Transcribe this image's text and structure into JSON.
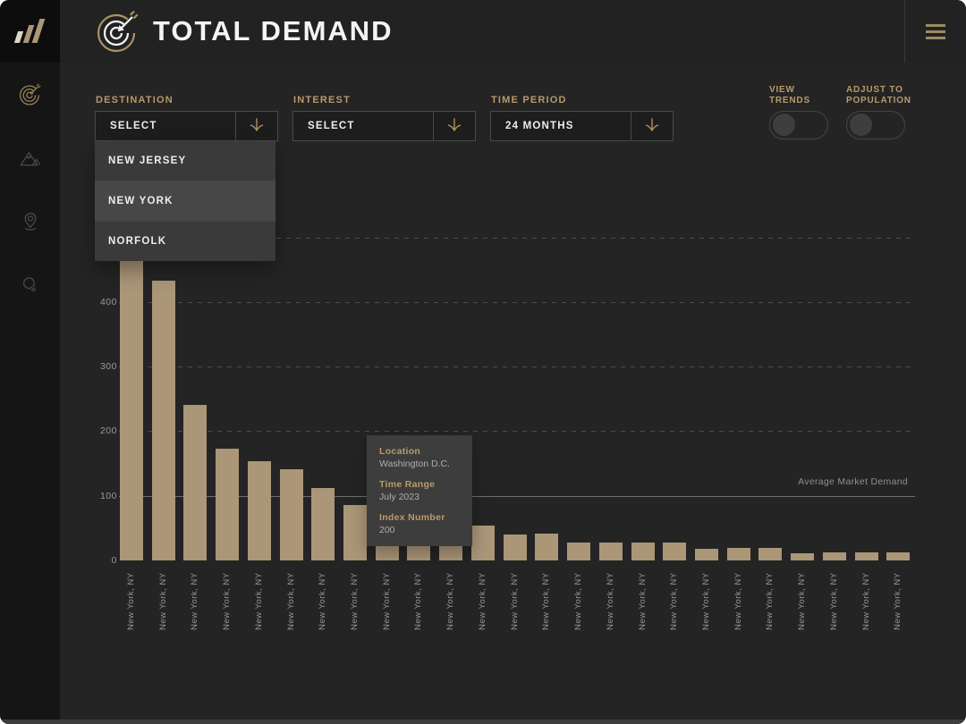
{
  "header": {
    "title": "TOTAL DEMAND"
  },
  "sidebar": {
    "items": [
      {
        "icon": "target-icon",
        "active": true
      },
      {
        "icon": "mountain-icon",
        "active": false
      },
      {
        "icon": "location-pin-icon",
        "active": false
      },
      {
        "icon": "lightbulb-icon",
        "active": false
      }
    ]
  },
  "filters": [
    {
      "label": "DESTINATION",
      "value": "SELECT",
      "open": true,
      "options": [
        {
          "label": "NEW JERSEY",
          "highlighted": false
        },
        {
          "label": "NEW YORK",
          "highlighted": true
        },
        {
          "label": "NORFOLK",
          "highlighted": false
        }
      ]
    },
    {
      "label": "INTEREST",
      "value": "SELECT"
    },
    {
      "label": "TIME PERIOD",
      "value": "24 MONTHS"
    }
  ],
  "toggles": [
    {
      "label": "VIEW TRENDS",
      "state": "off"
    },
    {
      "label": "ADJUST TO POPULATION",
      "state": "off"
    }
  ],
  "tooltip": {
    "fields": [
      {
        "label": "Location",
        "value": "Washington D.C."
      },
      {
        "label": "Time Range",
        "value": "July 2023"
      },
      {
        "label": "Index Number",
        "value": "200"
      }
    ]
  },
  "chart_data": {
    "type": "bar",
    "title": "",
    "xlabel": "",
    "ylabel": "",
    "categories": [
      "New York, NY",
      "New York, NY",
      "New York, NY",
      "New York, NY",
      "New York, NY",
      "New York, NY",
      "New York, NY",
      "New York, NY",
      "New York, NY",
      "New York, NY",
      "New York, NY",
      "New York, NY",
      "New York, NY",
      "New York, NY",
      "New York, NY",
      "New York, NY",
      "New York, NY",
      "New York, NY",
      "New York, NY",
      "New York, NY",
      "New York, NY",
      "New York, NY",
      "New York, NY",
      "New York, NY",
      "New York, NY"
    ],
    "values": [
      480,
      433,
      241,
      173,
      154,
      141,
      112,
      86,
      74,
      65,
      57,
      54,
      40,
      41,
      28,
      27,
      28,
      27,
      18,
      19,
      19,
      11,
      12,
      13,
      12
    ],
    "y_ticks": [
      0,
      100,
      200,
      300,
      400
    ],
    "gridlines": [
      200,
      300,
      400,
      500
    ],
    "ylim": [
      0,
      520
    ],
    "grid": true,
    "bar_color": "#ab9678",
    "average_line": {
      "value": 100,
      "label": "Average Market Demand"
    }
  },
  "colors": {
    "accent_tan": "#b89a6a",
    "bar": "#ab9678",
    "background": "#242424",
    "sidebar": "#151515"
  }
}
